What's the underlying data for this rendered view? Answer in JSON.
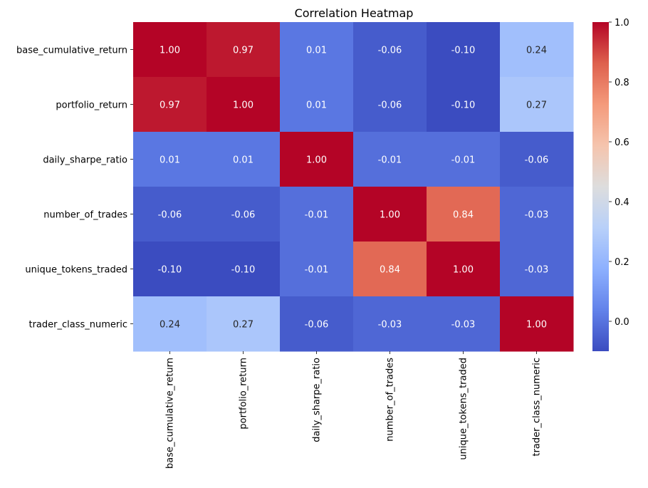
{
  "chart_data": {
    "type": "heatmap",
    "title": "Correlation Heatmap",
    "colormap": "coolwarm",
    "value_range": [
      -0.1,
      1.0
    ],
    "rows": [
      "base_cumulative_return",
      "portfolio_return",
      "daily_sharpe_ratio",
      "number_of_trades",
      "unique_tokens_traded",
      "trader_class_numeric"
    ],
    "columns": [
      "base_cumulative_return",
      "portfolio_return",
      "daily_sharpe_ratio",
      "number_of_trades",
      "unique_tokens_traded",
      "trader_class_numeric"
    ],
    "values": [
      [
        1.0,
        0.97,
        0.01,
        -0.06,
        -0.1,
        0.24
      ],
      [
        0.97,
        1.0,
        0.01,
        -0.06,
        -0.1,
        0.27
      ],
      [
        0.01,
        0.01,
        1.0,
        -0.01,
        -0.01,
        -0.06
      ],
      [
        -0.06,
        -0.06,
        -0.01,
        1.0,
        0.84,
        -0.03
      ],
      [
        -0.1,
        -0.1,
        -0.01,
        0.84,
        1.0,
        -0.03
      ],
      [
        0.24,
        0.27,
        -0.06,
        -0.03,
        -0.03,
        1.0
      ]
    ],
    "cell_labels": [
      [
        "1.00",
        "0.97",
        "0.01",
        "-0.06",
        "-0.10",
        "0.24"
      ],
      [
        "0.97",
        "1.00",
        "0.01",
        "-0.06",
        "-0.10",
        "0.27"
      ],
      [
        "0.01",
        "0.01",
        "1.00",
        "-0.01",
        "-0.01",
        "-0.06"
      ],
      [
        "-0.06",
        "-0.06",
        "-0.01",
        "1.00",
        "0.84",
        "-0.03"
      ],
      [
        "-0.10",
        "-0.10",
        "-0.01",
        "0.84",
        "1.00",
        "-0.03"
      ],
      [
        "0.24",
        "0.27",
        "-0.06",
        "-0.03",
        "-0.03",
        "1.00"
      ]
    ],
    "colorbar": {
      "range": [
        -0.1,
        1.0
      ],
      "ticks": [
        0.0,
        0.2,
        0.4,
        0.6,
        0.8,
        1.0
      ],
      "tick_labels": [
        "0.0",
        "0.2",
        "0.4",
        "0.6",
        "0.8",
        "1.0"
      ]
    }
  }
}
